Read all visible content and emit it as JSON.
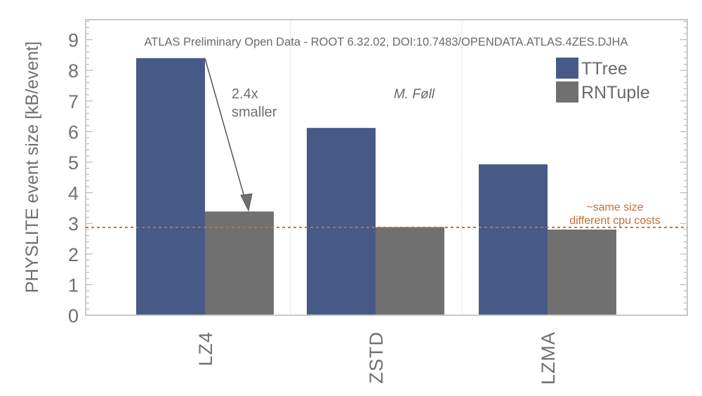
{
  "chart_data": {
    "type": "bar",
    "title": "ATLAS Preliminary Open Data - ROOT 6.32.02, DOI:10.7483/OPENDATA.ATLAS.4ZES.DJHA",
    "author": "M. Føll",
    "xlabel": "",
    "ylabel": "PHYSLITE event size [kB/event]",
    "categories": [
      "LZ4",
      "ZSTD",
      "LZMA"
    ],
    "series": [
      {
        "name": "TTree",
        "color": "#475a87",
        "values": [
          8.4,
          6.12,
          4.93
        ]
      },
      {
        "name": "RNTuple",
        "color": "#707070",
        "values": [
          3.39,
          2.88,
          2.8
        ]
      }
    ],
    "ylim": [
      0,
      9.65
    ],
    "yticks": [
      "0",
      "1",
      "2",
      "3",
      "4",
      "5",
      "6",
      "7",
      "8",
      "9"
    ],
    "legend_position": "top-right",
    "grid": false,
    "reference_line": {
      "value": 2.87,
      "color": "#c0703a",
      "style": "dashed"
    },
    "annotations": {
      "arrow_label_line1": "2.4x",
      "arrow_label_line2": "smaller",
      "ref_label_line1": "~same size",
      "ref_label_line2": "different cpu costs"
    }
  }
}
